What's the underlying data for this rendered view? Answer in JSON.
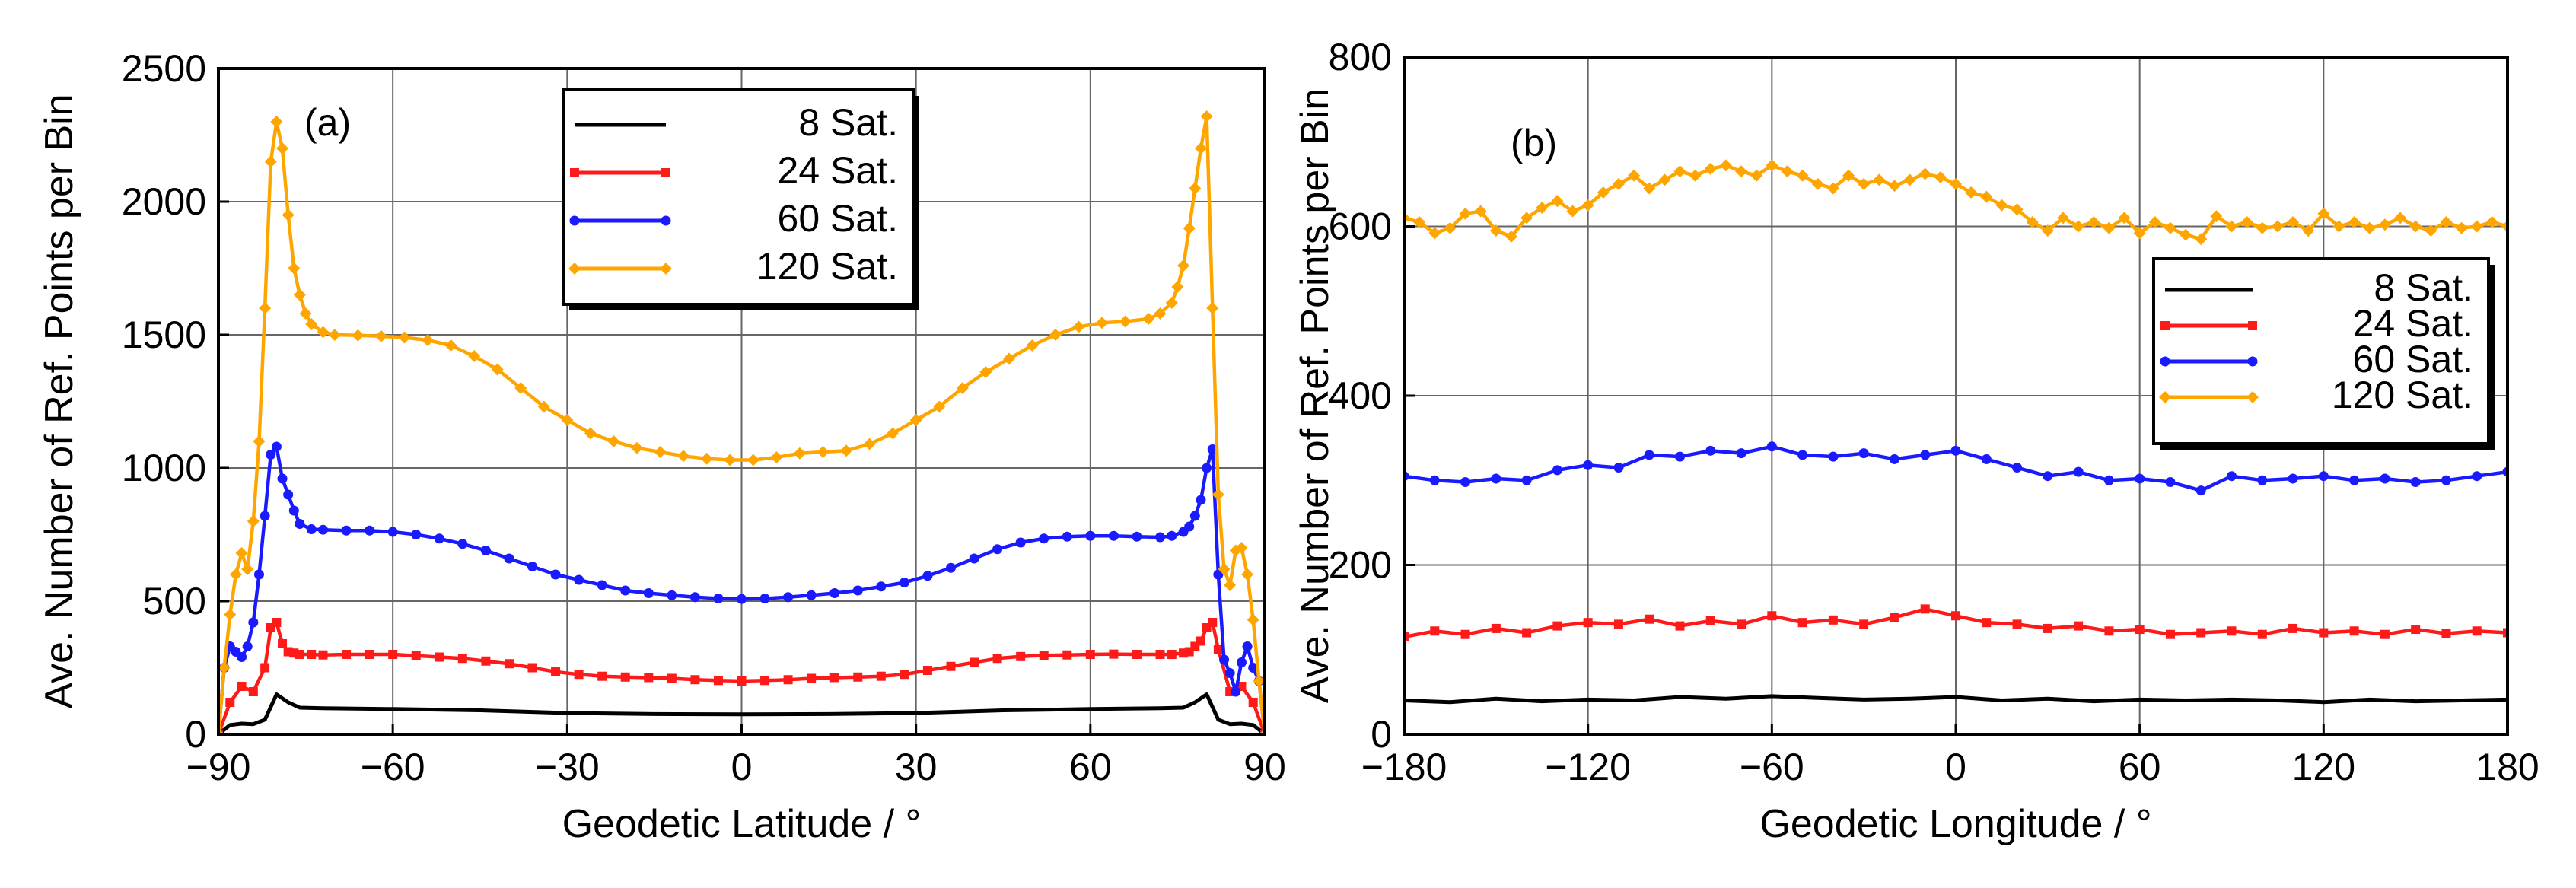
{
  "chart_data": [
    {
      "type": "line",
      "panel_label": "(a)",
      "title": "",
      "xlabel": "Geodetic Latitude / °",
      "ylabel": "Ave. Number of Ref. Points per Bin",
      "xlim": [
        -90,
        90
      ],
      "ylim": [
        0,
        2500
      ],
      "xticks": [
        -90,
        -60,
        -30,
        0,
        30,
        60,
        90
      ],
      "xtick_labels": [
        "−90",
        "−60",
        "−30",
        "0",
        "30",
        "60",
        "90"
      ],
      "yticks": [
        0,
        500,
        1000,
        1500,
        2000,
        2500
      ],
      "ytick_labels": [
        "0",
        "500",
        "1000",
        "1500",
        "2000",
        "2500"
      ],
      "grid": true,
      "legend_position": "top-right",
      "series": [
        {
          "name": "8 Sat.",
          "color": "#000000",
          "marker": "none",
          "x": [
            -90,
            -88,
            -86,
            -84,
            -82,
            -80,
            -78,
            -76,
            -72,
            -60,
            -45,
            -30,
            -15,
            0,
            15,
            30,
            45,
            60,
            72,
            76,
            78,
            80,
            82,
            84,
            86,
            88,
            90
          ],
          "y": [
            0,
            35,
            40,
            38,
            55,
            150,
            120,
            100,
            98,
            95,
            90,
            80,
            76,
            75,
            76,
            80,
            90,
            95,
            98,
            100,
            120,
            150,
            55,
            38,
            40,
            35,
            0
          ]
        },
        {
          "name": "24 Sat.",
          "color": "#ff1a1a",
          "marker": "square",
          "x": [
            -90,
            -88,
            -86,
            -84,
            -82,
            -81,
            -80,
            -79,
            -78,
            -77,
            -76,
            -74,
            -72,
            -68,
            -64,
            -60,
            -56,
            -52,
            -48,
            -44,
            -40,
            -36,
            -32,
            -28,
            -24,
            -20,
            -16,
            -12,
            -8,
            -4,
            0,
            4,
            8,
            12,
            16,
            20,
            24,
            28,
            32,
            36,
            40,
            44,
            48,
            52,
            56,
            60,
            64,
            68,
            72,
            74,
            76,
            77,
            78,
            79,
            80,
            81,
            82,
            84,
            86,
            88,
            90
          ],
          "y": [
            0,
            120,
            180,
            160,
            250,
            400,
            420,
            340,
            310,
            305,
            300,
            300,
            298,
            300,
            300,
            300,
            295,
            290,
            285,
            275,
            265,
            250,
            235,
            225,
            218,
            215,
            213,
            210,
            205,
            202,
            200,
            202,
            205,
            210,
            213,
            215,
            218,
            225,
            240,
            255,
            270,
            285,
            292,
            296,
            298,
            300,
            301,
            300,
            300,
            300,
            305,
            310,
            330,
            350,
            400,
            420,
            320,
            160,
            180,
            120,
            0
          ]
        },
        {
          "name": "60 Sat.",
          "color": "#1a1aff",
          "marker": "circle",
          "x": [
            -90,
            -89,
            -88,
            -87,
            -86,
            -85,
            -84,
            -83,
            -82,
            -81,
            -80,
            -79,
            -78,
            -77,
            -76,
            -74,
            -72,
            -68,
            -64,
            -60,
            -56,
            -52,
            -48,
            -44,
            -40,
            -36,
            -32,
            -28,
            -24,
            -20,
            -16,
            -12,
            -8,
            -4,
            0,
            4,
            8,
            12,
            16,
            20,
            24,
            28,
            32,
            36,
            40,
            44,
            48,
            52,
            56,
            60,
            64,
            68,
            72,
            74,
            76,
            77,
            78,
            79,
            80,
            81,
            82,
            83,
            84,
            85,
            86,
            87,
            88,
            89,
            90
          ],
          "y": [
            0,
            250,
            330,
            310,
            290,
            330,
            420,
            600,
            820,
            1050,
            1080,
            960,
            900,
            840,
            790,
            770,
            768,
            765,
            765,
            760,
            750,
            735,
            715,
            690,
            660,
            630,
            600,
            580,
            560,
            540,
            530,
            522,
            515,
            510,
            508,
            510,
            515,
            522,
            530,
            540,
            555,
            570,
            595,
            625,
            660,
            695,
            720,
            735,
            742,
            745,
            745,
            742,
            740,
            745,
            760,
            780,
            820,
            880,
            1000,
            1070,
            600,
            280,
            230,
            160,
            270,
            330,
            250,
            200,
            0
          ]
        },
        {
          "name": "120 Sat.",
          "color": "#ffa500",
          "marker": "diamond",
          "x": [
            -90,
            -89,
            -88,
            -87,
            -86,
            -85,
            -84,
            -83,
            -82,
            -81,
            -80,
            -79,
            -78,
            -77,
            -76,
            -75,
            -74,
            -72,
            -70,
            -66,
            -62,
            -58,
            -54,
            -50,
            -46,
            -42,
            -38,
            -34,
            -30,
            -26,
            -22,
            -18,
            -14,
            -10,
            -6,
            -2,
            2,
            6,
            10,
            14,
            18,
            22,
            26,
            30,
            34,
            38,
            42,
            46,
            50,
            54,
            58,
            62,
            66,
            70,
            72,
            74,
            75,
            76,
            77,
            78,
            79,
            80,
            81,
            82,
            83,
            84,
            85,
            86,
            87,
            88,
            89,
            90
          ],
          "y": [
            0,
            250,
            450,
            600,
            680,
            620,
            800,
            1100,
            1600,
            2150,
            2300,
            2200,
            1950,
            1750,
            1650,
            1580,
            1540,
            1510,
            1500,
            1498,
            1495,
            1490,
            1480,
            1460,
            1420,
            1370,
            1300,
            1230,
            1180,
            1130,
            1100,
            1075,
            1060,
            1045,
            1035,
            1030,
            1030,
            1040,
            1055,
            1060,
            1065,
            1090,
            1130,
            1180,
            1230,
            1300,
            1360,
            1410,
            1460,
            1500,
            1530,
            1545,
            1550,
            1560,
            1580,
            1620,
            1680,
            1760,
            1900,
            2050,
            2200,
            2320,
            1600,
            900,
            620,
            560,
            690,
            700,
            600,
            430,
            200,
            0
          ]
        }
      ]
    },
    {
      "type": "line",
      "panel_label": "(b)",
      "title": "",
      "xlabel": "Geodetic Longitude / °",
      "ylabel": "Ave. Number of Ref. Points per Bin",
      "xlim": [
        -180,
        180
      ],
      "ylim": [
        0,
        800
      ],
      "xticks": [
        -180,
        -120,
        -60,
        0,
        60,
        120,
        180
      ],
      "xtick_labels": [
        "−180",
        "−120",
        "−60",
        "0",
        "60",
        "120",
        "180"
      ],
      "yticks": [
        0,
        200,
        400,
        600,
        800
      ],
      "ytick_labels": [
        "0",
        "200",
        "400",
        "600",
        "800"
      ],
      "grid": true,
      "legend_position": "right",
      "series": [
        {
          "name": "8 Sat.",
          "color": "#000000",
          "marker": "none",
          "x": [
            -180,
            -165,
            -150,
            -135,
            -120,
            -105,
            -90,
            -75,
            -60,
            -45,
            -30,
            -15,
            0,
            15,
            30,
            45,
            60,
            75,
            90,
            105,
            120,
            135,
            150,
            165,
            180
          ],
          "y": [
            40,
            38,
            42,
            39,
            41,
            40,
            44,
            42,
            45,
            43,
            41,
            42,
            44,
            40,
            42,
            39,
            41,
            40,
            41,
            40,
            38,
            41,
            39,
            40,
            41
          ]
        },
        {
          "name": "24 Sat.",
          "color": "#ff1a1a",
          "marker": "square",
          "x": [
            -180,
            -170,
            -160,
            -150,
            -140,
            -130,
            -120,
            -110,
            -100,
            -90,
            -80,
            -70,
            -60,
            -50,
            -40,
            -30,
            -20,
            -10,
            0,
            10,
            20,
            30,
            40,
            50,
            60,
            70,
            80,
            90,
            100,
            110,
            120,
            130,
            140,
            150,
            160,
            170,
            180
          ],
          "y": [
            115,
            122,
            118,
            125,
            120,
            128,
            132,
            130,
            136,
            128,
            134,
            130,
            140,
            132,
            135,
            130,
            138,
            148,
            140,
            132,
            130,
            125,
            128,
            122,
            124,
            118,
            120,
            122,
            118,
            125,
            120,
            122,
            118,
            124,
            119,
            122,
            120
          ]
        },
        {
          "name": "60 Sat.",
          "color": "#1a1aff",
          "marker": "circle",
          "x": [
            -180,
            -170,
            -160,
            -150,
            -140,
            -130,
            -120,
            -110,
            -100,
            -90,
            -80,
            -70,
            -60,
            -50,
            -40,
            -30,
            -20,
            -10,
            0,
            10,
            20,
            30,
            40,
            50,
            60,
            70,
            80,
            90,
            100,
            110,
            120,
            130,
            140,
            150,
            160,
            170,
            180
          ],
          "y": [
            305,
            300,
            298,
            302,
            300,
            312,
            318,
            315,
            330,
            328,
            335,
            332,
            340,
            330,
            328,
            332,
            325,
            330,
            335,
            325,
            315,
            305,
            310,
            300,
            302,
            298,
            288,
            305,
            300,
            302,
            305,
            300,
            302,
            298,
            300,
            305,
            310
          ]
        },
        {
          "name": "120 Sat.",
          "color": "#ffa500",
          "marker": "diamond",
          "x": [
            -180,
            -175,
            -170,
            -165,
            -160,
            -155,
            -150,
            -145,
            -140,
            -135,
            -130,
            -125,
            -120,
            -115,
            -110,
            -105,
            -100,
            -95,
            -90,
            -85,
            -80,
            -75,
            -70,
            -65,
            -60,
            -55,
            -50,
            -45,
            -40,
            -35,
            -30,
            -25,
            -20,
            -15,
            -10,
            -5,
            0,
            5,
            10,
            15,
            20,
            25,
            30,
            35,
            40,
            45,
            50,
            55,
            60,
            65,
            70,
            75,
            80,
            85,
            90,
            95,
            100,
            105,
            110,
            115,
            120,
            125,
            130,
            135,
            140,
            145,
            150,
            155,
            160,
            165,
            170,
            175,
            180
          ],
          "y": [
            610,
            605,
            592,
            598,
            615,
            618,
            595,
            588,
            610,
            622,
            630,
            618,
            625,
            640,
            650,
            660,
            645,
            655,
            665,
            660,
            668,
            672,
            665,
            660,
            672,
            665,
            660,
            650,
            645,
            660,
            650,
            655,
            648,
            655,
            662,
            658,
            650,
            640,
            635,
            625,
            620,
            605,
            595,
            610,
            600,
            605,
            598,
            610,
            592,
            605,
            598,
            590,
            585,
            612,
            600,
            605,
            598,
            600,
            605,
            595,
            615,
            600,
            605,
            598,
            602,
            610,
            600,
            595,
            605,
            598,
            600,
            605,
            600
          ]
        }
      ]
    }
  ]
}
